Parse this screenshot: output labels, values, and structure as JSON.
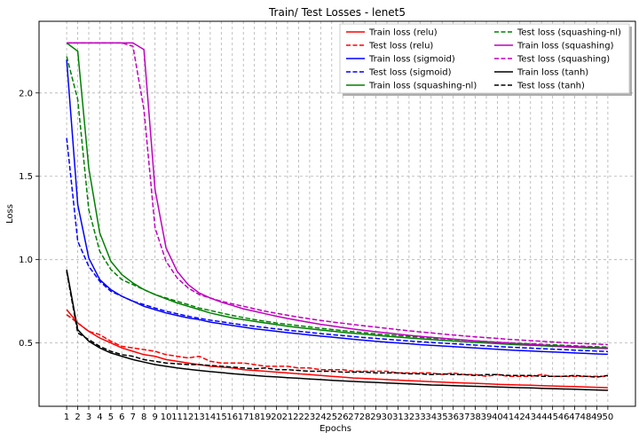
{
  "chart_data": {
    "type": "line",
    "title": "Train/ Test Losses - lenet5",
    "xlabel": "Epochs",
    "ylabel": "Loss",
    "xlim": [
      -1.5,
      52.5
    ],
    "ylim": [
      0.12,
      2.43
    ],
    "xticks": [
      1,
      2,
      3,
      4,
      5,
      6,
      7,
      8,
      9,
      10,
      11,
      12,
      13,
      14,
      15,
      16,
      17,
      18,
      19,
      20,
      21,
      22,
      23,
      24,
      25,
      26,
      27,
      28,
      29,
      30,
      31,
      32,
      33,
      34,
      35,
      36,
      37,
      38,
      39,
      40,
      41,
      42,
      43,
      44,
      45,
      46,
      47,
      48,
      49,
      50
    ],
    "yticks": [
      0.5,
      1.0,
      1.5,
      2.0
    ],
    "ytick_labels": [
      "0.5",
      "1.0",
      "1.5",
      "2.0"
    ],
    "grid": true,
    "legend_position": "top-right",
    "legend_columns": 2,
    "x": [
      1,
      2,
      3,
      4,
      5,
      6,
      7,
      8,
      9,
      10,
      11,
      12,
      13,
      14,
      15,
      16,
      17,
      18,
      19,
      20,
      21,
      22,
      23,
      24,
      25,
      26,
      27,
      28,
      29,
      30,
      31,
      32,
      33,
      34,
      35,
      36,
      37,
      38,
      39,
      40,
      41,
      42,
      43,
      44,
      45,
      46,
      47,
      48,
      49,
      50
    ],
    "series": [
      {
        "name": "Train loss (relu)",
        "color": "#ff0000",
        "dash": "solid",
        "values": [
          0.7,
          0.62,
          0.57,
          0.53,
          0.5,
          0.47,
          0.45,
          0.43,
          0.42,
          0.4,
          0.39,
          0.38,
          0.37,
          0.36,
          0.355,
          0.35,
          0.34,
          0.335,
          0.33,
          0.325,
          0.32,
          0.315,
          0.31,
          0.305,
          0.3,
          0.295,
          0.29,
          0.287,
          0.284,
          0.28,
          0.277,
          0.274,
          0.271,
          0.268,
          0.265,
          0.262,
          0.26,
          0.258,
          0.255,
          0.252,
          0.25,
          0.248,
          0.246,
          0.244,
          0.242,
          0.24,
          0.238,
          0.236,
          0.234,
          0.232
        ]
      },
      {
        "name": "Test loss (relu)",
        "color": "#ff0000",
        "dash": "dashed",
        "values": [
          0.67,
          0.62,
          0.57,
          0.55,
          0.51,
          0.48,
          0.47,
          0.46,
          0.45,
          0.43,
          0.42,
          0.41,
          0.42,
          0.39,
          0.38,
          0.38,
          0.38,
          0.37,
          0.36,
          0.36,
          0.36,
          0.35,
          0.35,
          0.34,
          0.34,
          0.34,
          0.33,
          0.33,
          0.33,
          0.33,
          0.32,
          0.32,
          0.32,
          0.32,
          0.31,
          0.32,
          0.31,
          0.31,
          0.3,
          0.31,
          0.3,
          0.3,
          0.3,
          0.31,
          0.3,
          0.3,
          0.3,
          0.3,
          0.3,
          0.3
        ]
      },
      {
        "name": "Train loss (sigmoid)",
        "color": "#0000ff",
        "dash": "solid",
        "values": [
          2.2,
          1.33,
          1.01,
          0.88,
          0.82,
          0.78,
          0.75,
          0.72,
          0.7,
          0.68,
          0.665,
          0.65,
          0.64,
          0.625,
          0.615,
          0.605,
          0.595,
          0.585,
          0.578,
          0.57,
          0.562,
          0.555,
          0.548,
          0.541,
          0.535,
          0.528,
          0.522,
          0.516,
          0.51,
          0.505,
          0.5,
          0.495,
          0.49,
          0.486,
          0.482,
          0.478,
          0.474,
          0.47,
          0.466,
          0.462,
          0.458,
          0.455,
          0.452,
          0.449,
          0.446,
          0.443,
          0.44,
          0.437,
          0.434,
          0.432
        ]
      },
      {
        "name": "Test loss (sigmoid)",
        "color": "#0000ff",
        "dash": "dashed",
        "values": [
          1.73,
          1.11,
          0.96,
          0.87,
          0.81,
          0.78,
          0.75,
          0.73,
          0.71,
          0.69,
          0.675,
          0.66,
          0.648,
          0.637,
          0.627,
          0.617,
          0.608,
          0.6,
          0.592,
          0.584,
          0.577,
          0.57,
          0.563,
          0.556,
          0.55,
          0.544,
          0.538,
          0.532,
          0.527,
          0.522,
          0.517,
          0.512,
          0.507,
          0.503,
          0.499,
          0.495,
          0.491,
          0.487,
          0.483,
          0.479,
          0.475,
          0.472,
          0.469,
          0.466,
          0.463,
          0.46,
          0.457,
          0.454,
          0.451,
          0.449
        ]
      },
      {
        "name": "Train loss (squashing-nl)",
        "color": "#008000",
        "dash": "solid",
        "values": [
          2.3,
          2.25,
          1.55,
          1.16,
          0.99,
          0.91,
          0.86,
          0.82,
          0.79,
          0.765,
          0.74,
          0.72,
          0.7,
          0.68,
          0.665,
          0.65,
          0.64,
          0.63,
          0.62,
          0.61,
          0.6,
          0.592,
          0.585,
          0.578,
          0.571,
          0.564,
          0.558,
          0.552,
          0.546,
          0.54,
          0.535,
          0.53,
          0.525,
          0.52,
          0.516,
          0.512,
          0.508,
          0.504,
          0.5,
          0.496,
          0.492,
          0.489,
          0.486,
          0.483,
          0.48,
          0.477,
          0.474,
          0.471,
          0.468,
          0.466
        ]
      },
      {
        "name": "Test loss (squashing-nl)",
        "color": "#008000",
        "dash": "dashed",
        "values": [
          2.22,
          1.96,
          1.3,
          1.05,
          0.94,
          0.88,
          0.85,
          0.82,
          0.79,
          0.77,
          0.75,
          0.73,
          0.71,
          0.695,
          0.68,
          0.665,
          0.652,
          0.64,
          0.63,
          0.62,
          0.612,
          0.604,
          0.596,
          0.588,
          0.581,
          0.574,
          0.567,
          0.561,
          0.555,
          0.549,
          0.544,
          0.539,
          0.534,
          0.529,
          0.525,
          0.521,
          0.517,
          0.513,
          0.509,
          0.505,
          0.501,
          0.498,
          0.495,
          0.492,
          0.489,
          0.486,
          0.483,
          0.48,
          0.477,
          0.475
        ]
      },
      {
        "name": "Train loss (squashing)",
        "color": "#bf00bf",
        "dash": "solid",
        "values": [
          2.3,
          2.3,
          2.3,
          2.3,
          2.3,
          2.3,
          2.3,
          2.26,
          1.42,
          1.07,
          0.93,
          0.85,
          0.8,
          0.77,
          0.745,
          0.725,
          0.705,
          0.69,
          0.675,
          0.66,
          0.647,
          0.635,
          0.623,
          0.612,
          0.602,
          0.592,
          0.583,
          0.575,
          0.567,
          0.56,
          0.553,
          0.546,
          0.54,
          0.534,
          0.528,
          0.523,
          0.518,
          0.513,
          0.508,
          0.504,
          0.5,
          0.496,
          0.492,
          0.488,
          0.484,
          0.481,
          0.478,
          0.475,
          0.472,
          0.47
        ]
      },
      {
        "name": "Test loss (squashing)",
        "color": "#bf00bf",
        "dash": "dashed",
        "values": [
          2.3,
          2.3,
          2.3,
          2.3,
          2.3,
          2.3,
          2.28,
          1.9,
          1.19,
          0.99,
          0.89,
          0.83,
          0.79,
          0.77,
          0.75,
          0.735,
          0.72,
          0.705,
          0.69,
          0.678,
          0.666,
          0.655,
          0.645,
          0.635,
          0.626,
          0.618,
          0.61,
          0.602,
          0.595,
          0.588,
          0.58,
          0.573,
          0.566,
          0.56,
          0.554,
          0.548,
          0.542,
          0.537,
          0.532,
          0.527,
          0.522,
          0.518,
          0.514,
          0.51,
          0.506,
          0.502,
          0.499,
          0.496,
          0.493,
          0.49
        ]
      },
      {
        "name": "Train loss (tanh)",
        "color": "#000000",
        "dash": "solid",
        "values": [
          0.94,
          0.58,
          0.51,
          0.47,
          0.44,
          0.42,
          0.4,
          0.385,
          0.37,
          0.36,
          0.35,
          0.342,
          0.335,
          0.328,
          0.322,
          0.316,
          0.31,
          0.305,
          0.3,
          0.296,
          0.292,
          0.288,
          0.284,
          0.28,
          0.276,
          0.272,
          0.269,
          0.266,
          0.263,
          0.26,
          0.257,
          0.254,
          0.251,
          0.248,
          0.246,
          0.244,
          0.242,
          0.24,
          0.238,
          0.236,
          0.234,
          0.232,
          0.23,
          0.228,
          0.226,
          0.224,
          0.222,
          0.22,
          0.218,
          0.216
        ]
      },
      {
        "name": "Test loss (tanh)",
        "color": "#000000",
        "dash": "dashed",
        "values": [
          0.93,
          0.56,
          0.52,
          0.48,
          0.45,
          0.43,
          0.42,
          0.4,
          0.39,
          0.38,
          0.375,
          0.37,
          0.37,
          0.365,
          0.36,
          0.355,
          0.35,
          0.345,
          0.35,
          0.34,
          0.34,
          0.335,
          0.33,
          0.33,
          0.33,
          0.325,
          0.325,
          0.325,
          0.32,
          0.32,
          0.32,
          0.315,
          0.315,
          0.31,
          0.315,
          0.31,
          0.31,
          0.305,
          0.31,
          0.31,
          0.305,
          0.305,
          0.305,
          0.3,
          0.3,
          0.3,
          0.305,
          0.3,
          0.295,
          0.305
        ]
      }
    ]
  }
}
